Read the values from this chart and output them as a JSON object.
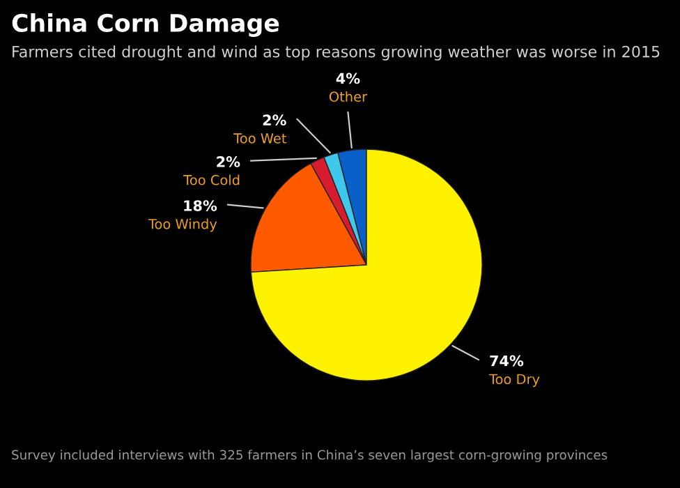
{
  "chart_data": {
    "type": "pie",
    "title": "China Corn Damage",
    "subtitle": "Farmers cited drought and wind as top reasons growing weather was worse in 2015",
    "categories": [
      "Other",
      "Too Wet",
      "Too Cold",
      "Too Windy",
      "Too Dry"
    ],
    "values": [
      4,
      2,
      2,
      18,
      74
    ],
    "value_labels": [
      "4%",
      "2%",
      "2%",
      "18%",
      "74%"
    ],
    "colors": [
      "#0a5fc8",
      "#40c8ec",
      "#d81c30",
      "#ff5a00",
      "#fff200"
    ],
    "annotations": [
      "Survey included interviews with 325 farmers in China’s seven largest corn-growing provinces"
    ],
    "legend": false
  }
}
